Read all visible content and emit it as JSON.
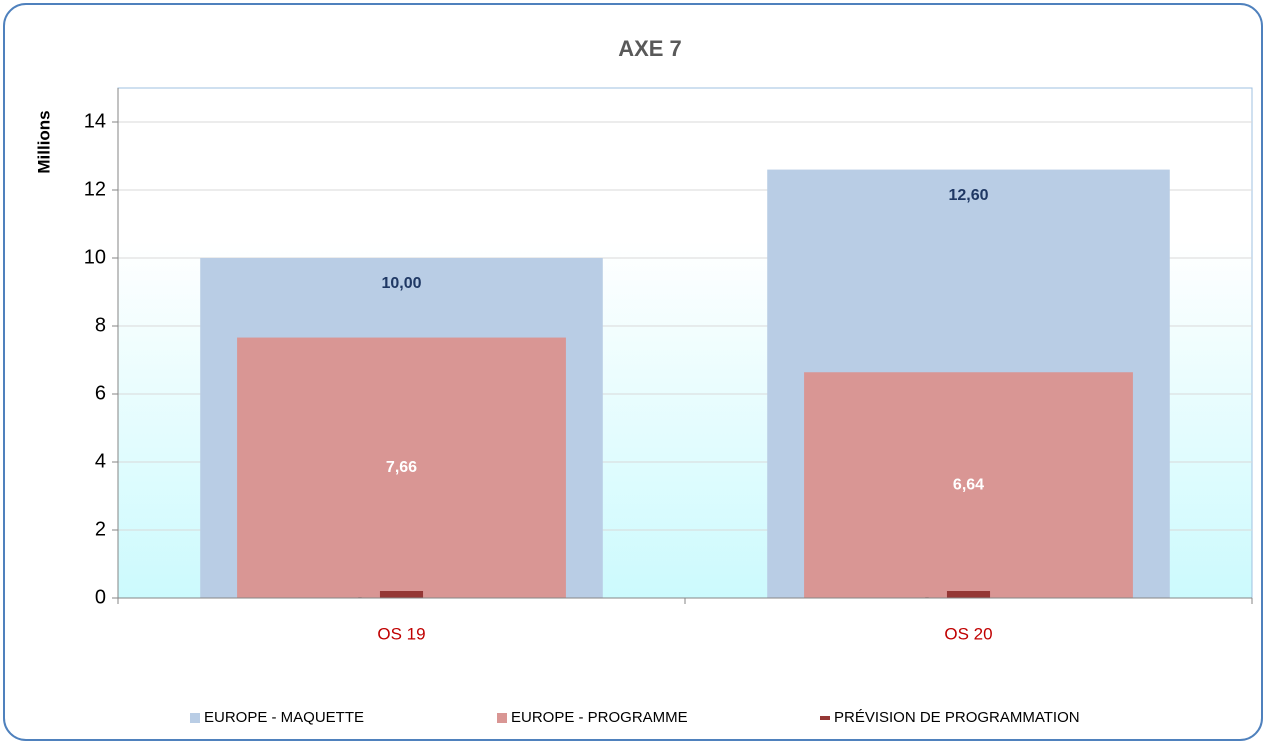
{
  "chart_data": {
    "type": "bar",
    "title": "AXE 7",
    "y_label": "Millions",
    "categories": [
      "OS 19",
      "OS 20"
    ],
    "series": [
      {
        "name": "EUROPE - MAQUETTE",
        "color": "#b9cde5",
        "values": [
          10.0,
          12.6
        ],
        "value_labels": [
          "10,00",
          "12,60"
        ]
      },
      {
        "name": "EUROPE - PROGRAMME",
        "color": "#d99694",
        "values": [
          7.66,
          6.64
        ],
        "value_labels": [
          "7,66",
          "6,64"
        ]
      },
      {
        "name": "PRÉVISION DE PROGRAMMATION",
        "color": "#953735",
        "style": "dash",
        "values": [
          0,
          0
        ],
        "value_labels": [
          "-",
          "-"
        ]
      }
    ],
    "ylim": [
      0,
      15
    ],
    "yticks": [
      0,
      2,
      4,
      6,
      8,
      10,
      12,
      14
    ],
    "grid": true,
    "legend": "bottom"
  }
}
